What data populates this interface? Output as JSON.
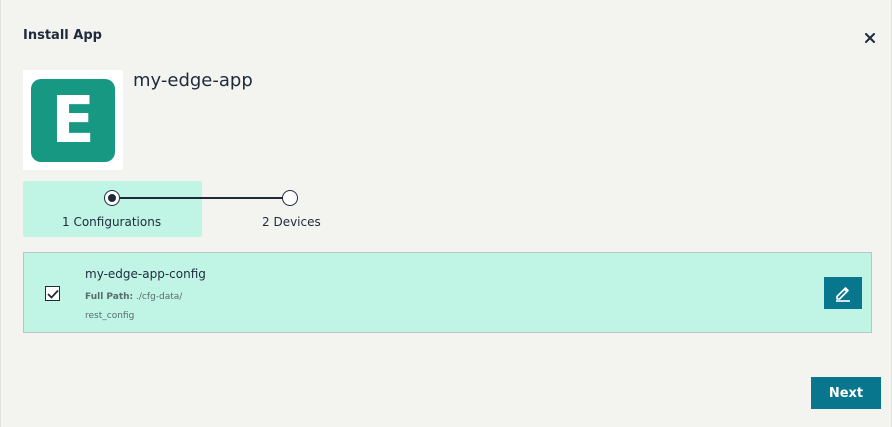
{
  "dialog": {
    "title": "Install App",
    "close_icon": "close-icon"
  },
  "app": {
    "logo_letter": "E",
    "logo_color": "#179883",
    "name": "my-edge-app"
  },
  "stepper": {
    "steps": [
      {
        "label": "1 Configurations",
        "state": "current"
      },
      {
        "label": "2 Devices",
        "state": "upcoming"
      }
    ]
  },
  "configs": [
    {
      "name": "my-edge-app-config",
      "path_label": "Full Path:",
      "path_value": "./cfg-data/",
      "path_value_2": "rest_config",
      "checked": true,
      "edit_icon": "pencil-icon"
    }
  ],
  "footer": {
    "next_label": "Next"
  },
  "colors": {
    "accent": "#08778d",
    "highlight": "#c0f5e6",
    "text": "#1f2a3c"
  }
}
